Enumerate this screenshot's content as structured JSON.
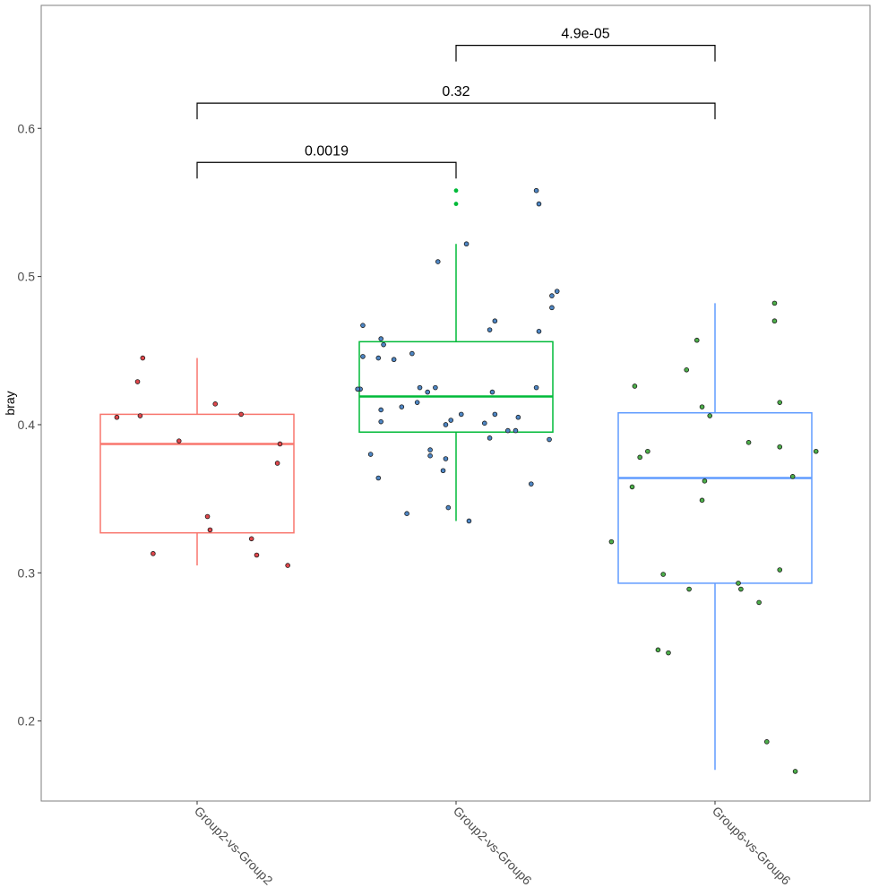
{
  "chart_data": {
    "type": "boxplot",
    "ylabel": "bray",
    "xlabel": "",
    "ylim": [
      0.146,
      0.683
    ],
    "y_ticks": [
      0.2,
      0.3,
      0.4,
      0.5,
      0.6
    ],
    "y_tick_labels": [
      "0.2",
      "0.3",
      "0.4",
      "0.5",
      "0.6"
    ],
    "grid": false,
    "categories": [
      "Group2-vs-Group2",
      "Group2-vs-Group6",
      "Group6-vs-Group6"
    ],
    "boxes": [
      {
        "category": "Group2-vs-Group2",
        "color": "#F8766D",
        "point_fill": "#E0474C",
        "whisker_low": 0.305,
        "q1": 0.327,
        "median": 0.387,
        "q3": 0.407,
        "whisker_high": 0.445,
        "outliers": [],
        "points": [
          {
            "dx": -0.21,
            "y": 0.445
          },
          {
            "dx": -0.23,
            "y": 0.429
          },
          {
            "dx": -0.31,
            "y": 0.405
          },
          {
            "dx": -0.22,
            "y": 0.406
          },
          {
            "dx": -0.07,
            "y": 0.389
          },
          {
            "dx": 0.07,
            "y": 0.414
          },
          {
            "dx": 0.17,
            "y": 0.407
          },
          {
            "dx": 0.32,
            "y": 0.387
          },
          {
            "dx": 0.31,
            "y": 0.374
          },
          {
            "dx": 0.04,
            "y": 0.338
          },
          {
            "dx": 0.05,
            "y": 0.329
          },
          {
            "dx": 0.21,
            "y": 0.323
          },
          {
            "dx": -0.17,
            "y": 0.313
          },
          {
            "dx": 0.23,
            "y": 0.312
          },
          {
            "dx": 0.35,
            "y": 0.305
          }
        ]
      },
      {
        "category": "Group2-vs-Group6",
        "color": "#00BA38",
        "point_fill": "#4E86C4",
        "whisker_low": 0.335,
        "q1": 0.395,
        "median": 0.419,
        "q3": 0.456,
        "whisker_high": 0.522,
        "outliers": [
          0.558,
          0.549
        ],
        "points": [
          {
            "dx": 0.31,
            "y": 0.558
          },
          {
            "dx": 0.32,
            "y": 0.549
          },
          {
            "dx": 0.04,
            "y": 0.522
          },
          {
            "dx": -0.07,
            "y": 0.51
          },
          {
            "dx": 0.39,
            "y": 0.49
          },
          {
            "dx": 0.37,
            "y": 0.487
          },
          {
            "dx": 0.37,
            "y": 0.479
          },
          {
            "dx": 0.15,
            "y": 0.47
          },
          {
            "dx": -0.36,
            "y": 0.467
          },
          {
            "dx": 0.13,
            "y": 0.464
          },
          {
            "dx": 0.32,
            "y": 0.463
          },
          {
            "dx": -0.29,
            "y": 0.458
          },
          {
            "dx": -0.28,
            "y": 0.454
          },
          {
            "dx": -0.17,
            "y": 0.448
          },
          {
            "dx": -0.36,
            "y": 0.446
          },
          {
            "dx": -0.3,
            "y": 0.445
          },
          {
            "dx": -0.24,
            "y": 0.444
          },
          {
            "dx": -0.14,
            "y": 0.425
          },
          {
            "dx": -0.08,
            "y": 0.425
          },
          {
            "dx": -0.37,
            "y": 0.424
          },
          {
            "dx": -0.38,
            "y": 0.424
          },
          {
            "dx": -0.11,
            "y": 0.422
          },
          {
            "dx": 0.31,
            "y": 0.425
          },
          {
            "dx": 0.14,
            "y": 0.422
          },
          {
            "dx": -0.15,
            "y": 0.415
          },
          {
            "dx": -0.21,
            "y": 0.412
          },
          {
            "dx": -0.29,
            "y": 0.41
          },
          {
            "dx": 0.15,
            "y": 0.407
          },
          {
            "dx": 0.02,
            "y": 0.407
          },
          {
            "dx": 0.24,
            "y": 0.405
          },
          {
            "dx": -0.02,
            "y": 0.403
          },
          {
            "dx": -0.29,
            "y": 0.402
          },
          {
            "dx": 0.11,
            "y": 0.401
          },
          {
            "dx": -0.04,
            "y": 0.4
          },
          {
            "dx": 0.2,
            "y": 0.396
          },
          {
            "dx": 0.23,
            "y": 0.396
          },
          {
            "dx": 0.13,
            "y": 0.391
          },
          {
            "dx": 0.36,
            "y": 0.39
          },
          {
            "dx": -0.1,
            "y": 0.383
          },
          {
            "dx": -0.33,
            "y": 0.38
          },
          {
            "dx": -0.1,
            "y": 0.379
          },
          {
            "dx": -0.04,
            "y": 0.377
          },
          {
            "dx": -0.05,
            "y": 0.369
          },
          {
            "dx": -0.3,
            "y": 0.364
          },
          {
            "dx": 0.29,
            "y": 0.36
          },
          {
            "dx": -0.03,
            "y": 0.344
          },
          {
            "dx": -0.19,
            "y": 0.34
          },
          {
            "dx": 0.05,
            "y": 0.335
          }
        ]
      },
      {
        "category": "Group6-vs-Group6",
        "color": "#619CFF",
        "point_fill": "#4DAF4A",
        "whisker_low": 0.167,
        "q1": 0.293,
        "median": 0.364,
        "q3": 0.408,
        "whisker_high": 0.482,
        "outliers": [],
        "points": [
          {
            "dx": 0.23,
            "y": 0.482
          },
          {
            "dx": 0.23,
            "y": 0.47
          },
          {
            "dx": -0.07,
            "y": 0.457
          },
          {
            "dx": -0.11,
            "y": 0.437
          },
          {
            "dx": -0.31,
            "y": 0.426
          },
          {
            "dx": 0.25,
            "y": 0.415
          },
          {
            "dx": -0.05,
            "y": 0.412
          },
          {
            "dx": -0.02,
            "y": 0.406
          },
          {
            "dx": 0.13,
            "y": 0.388
          },
          {
            "dx": 0.25,
            "y": 0.385
          },
          {
            "dx": -0.26,
            "y": 0.382
          },
          {
            "dx": 0.39,
            "y": 0.382
          },
          {
            "dx": -0.29,
            "y": 0.378
          },
          {
            "dx": 0.3,
            "y": 0.365
          },
          {
            "dx": -0.04,
            "y": 0.362
          },
          {
            "dx": -0.32,
            "y": 0.358
          },
          {
            "dx": -0.05,
            "y": 0.349
          },
          {
            "dx": -0.4,
            "y": 0.321
          },
          {
            "dx": 0.25,
            "y": 0.302
          },
          {
            "dx": -0.2,
            "y": 0.299
          },
          {
            "dx": 0.09,
            "y": 0.293
          },
          {
            "dx": 0.1,
            "y": 0.289
          },
          {
            "dx": -0.1,
            "y": 0.289
          },
          {
            "dx": 0.17,
            "y": 0.28
          },
          {
            "dx": -0.22,
            "y": 0.248
          },
          {
            "dx": -0.18,
            "y": 0.246
          },
          {
            "dx": 0.2,
            "y": 0.186
          },
          {
            "dx": 0.31,
            "y": 0.166
          }
        ]
      }
    ],
    "comparisons": [
      {
        "from": 0,
        "to": 1,
        "label": "0.0019",
        "y": 0.577
      },
      {
        "from": 0,
        "to": 2,
        "label": "0.32",
        "y": 0.617
      },
      {
        "from": 1,
        "to": 2,
        "label": "4.9e-05",
        "y": 0.656
      }
    ]
  }
}
